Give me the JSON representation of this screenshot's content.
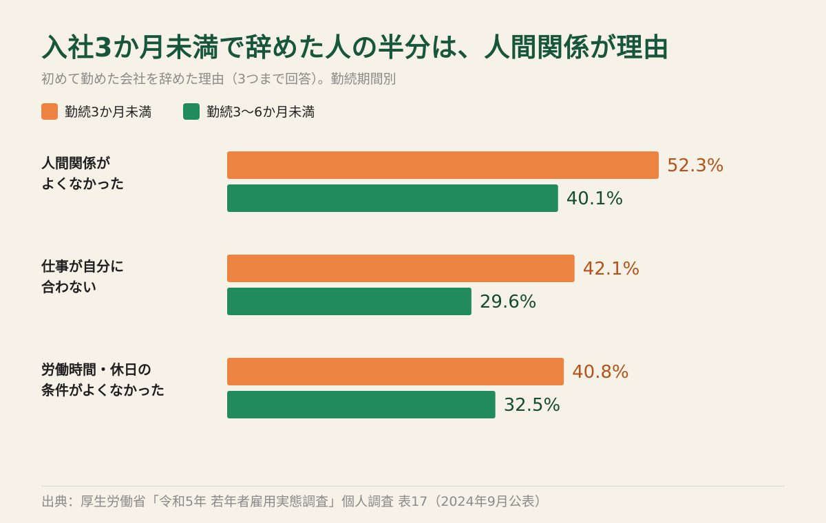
{
  "header": {
    "title": "入社3か月未満で辞めた人の半分は、人間関係が理由",
    "subtitle": "初めて勤めた会社を辞めた理由（3つまで回答）。勤続期間別"
  },
  "source": "出典：厚生労働省「令和5年 若年者雇用実態調査」個人調査 表17（2024年9月公表）",
  "chart_data": {
    "type": "bar",
    "orientation": "horizontal",
    "title": "入社3か月未満で辞めた人の半分は、人間関係が理由",
    "subtitle": "初めて勤めた会社を辞めた理由（3つまで回答）。勤続期間別",
    "unit": "%",
    "categories": [
      [
        "人間関係が",
        "よくなかった"
      ],
      [
        "仕事が自分に",
        "合わない"
      ],
      [
        "労働時間・休日の",
        "条件がよくなかった"
      ]
    ],
    "series": [
      {
        "name": "勤続3か月未満",
        "color": "#ed8340",
        "label_color": "#b5521a",
        "values": [
          52.3,
          42.1,
          40.8
        ]
      },
      {
        "name": "勤続3〜6か月未満",
        "color": "#218b5b",
        "label_color": "#174a32",
        "values": [
          40.1,
          29.6,
          32.5
        ]
      }
    ],
    "value_labels": [
      [
        "52.3%",
        "42.1%",
        "40.8%"
      ],
      [
        "40.1%",
        "29.6%",
        "32.5%"
      ]
    ],
    "legend_position": "top-left",
    "grid": false,
    "axes_visible": false
  }
}
